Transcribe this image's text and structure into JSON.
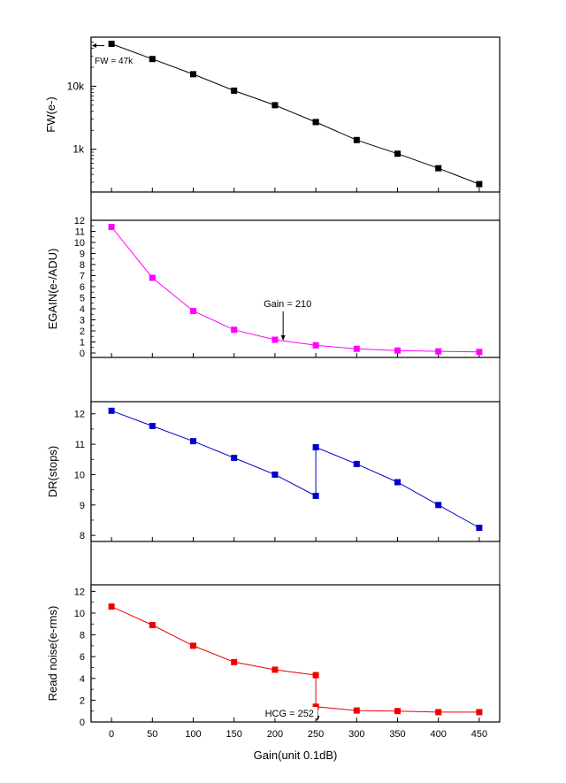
{
  "chart_data": [
    {
      "type": "line",
      "ylabel": "FW(e-)",
      "yscale": "log",
      "x": [
        0,
        50,
        100,
        150,
        200,
        250,
        250,
        300,
        350,
        400,
        450
      ],
      "values": [
        47000,
        27000,
        15500,
        8500,
        5000,
        2700,
        2700,
        1400,
        850,
        500,
        280
      ],
      "ylim": [
        210,
        60000
      ],
      "ytick_labels": [
        {
          "label": "1k",
          "value": 1000
        },
        {
          "label": "10k",
          "value": 10000
        }
      ],
      "annotation": "FW = 47k",
      "color": "#000000",
      "grid": true
    },
    {
      "type": "line",
      "ylabel": "EGAIN(e-/ADU)",
      "x": [
        0,
        50,
        100,
        150,
        200,
        250,
        300,
        350,
        400,
        450
      ],
      "values": [
        11.4,
        6.8,
        3.8,
        2.1,
        1.2,
        0.7,
        0.38,
        0.22,
        0.15,
        0.1
      ],
      "ylim": [
        -0.4,
        12
      ],
      "yticks": [
        0,
        1,
        2,
        3,
        4,
        5,
        6,
        7,
        8,
        9,
        10,
        11,
        12
      ],
      "annotation": "Gain = 210",
      "annotation_x": 210,
      "color": "#ff00ff",
      "grid": true
    },
    {
      "type": "line",
      "ylabel": "DR(stops)",
      "x": [
        0,
        50,
        100,
        150,
        200,
        250,
        250,
        300,
        350,
        400,
        450
      ],
      "values": [
        12.1,
        11.6,
        11.1,
        10.55,
        10.0,
        9.3,
        10.9,
        10.35,
        9.75,
        9.0,
        8.25
      ],
      "ylim": [
        7.8,
        12.4
      ],
      "yticks": [
        8,
        9,
        10,
        11,
        12
      ],
      "color": "#0000cc",
      "grid": true
    },
    {
      "type": "line",
      "ylabel": "Read noise(e-rms)",
      "xlabel": "Gain(unit 0.1dB)",
      "x": [
        0,
        50,
        100,
        150,
        200,
        250,
        250,
        300,
        350,
        400,
        450
      ],
      "values": [
        10.6,
        8.9,
        7.0,
        5.5,
        4.8,
        4.3,
        1.4,
        1.05,
        1.0,
        0.9,
        0.9
      ],
      "ylim": [
        0,
        12.6
      ],
      "yticks": [
        0,
        2,
        4,
        6,
        8,
        10,
        12
      ],
      "xticks": [
        0,
        50,
        100,
        150,
        200,
        250,
        300,
        350,
        400,
        450
      ],
      "annotation": "HCG = 252",
      "annotation_x": 252,
      "color": "#ee0000",
      "grid": true
    }
  ]
}
